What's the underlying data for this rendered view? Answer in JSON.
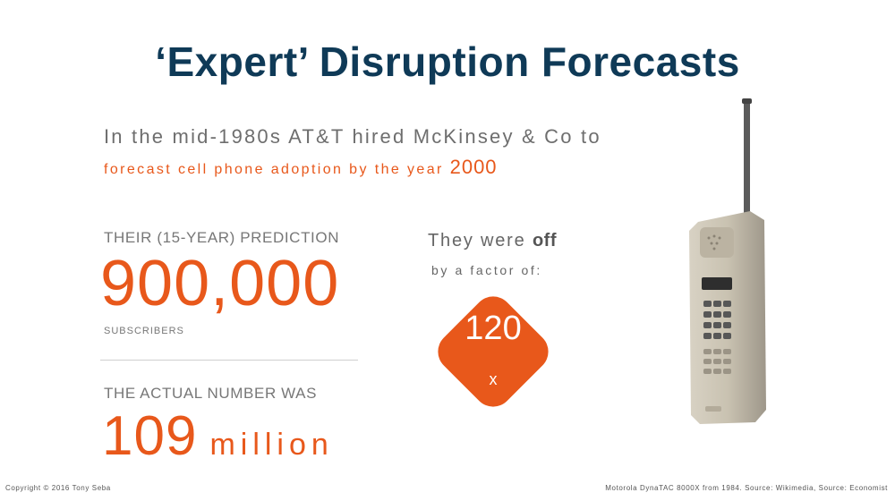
{
  "slide": {
    "title": "‘Expert’ Disruption Forecasts",
    "intro_line1": "In the mid-1980s AT&T hired McKinsey & Co to",
    "intro_line2_text": "forecast cell phone adoption by the year ",
    "intro_line2_year": "2000",
    "prediction_label": "THEIR (15-YEAR) PREDICTION",
    "prediction_value": "900,000",
    "subscribers_label": "SUBSCRIBERS",
    "actual_label": "THE ACTUAL NUMBER WAS",
    "actual_value": "109",
    "actual_unit": "million",
    "off_text": "They were ",
    "off_bold": "off",
    "factor_text": "by a factor of:",
    "factor_value": "120",
    "factor_symbol": "x",
    "footer_left": "Copyright © 2016 Tony Seba",
    "footer_right": "Motorola DynaTAC 8000X from 1984. Source: Wikimedia, Source: Economist"
  },
  "colors": {
    "title": "#0f3a57",
    "accent": "#e8581b",
    "text_gray": "#777777"
  }
}
